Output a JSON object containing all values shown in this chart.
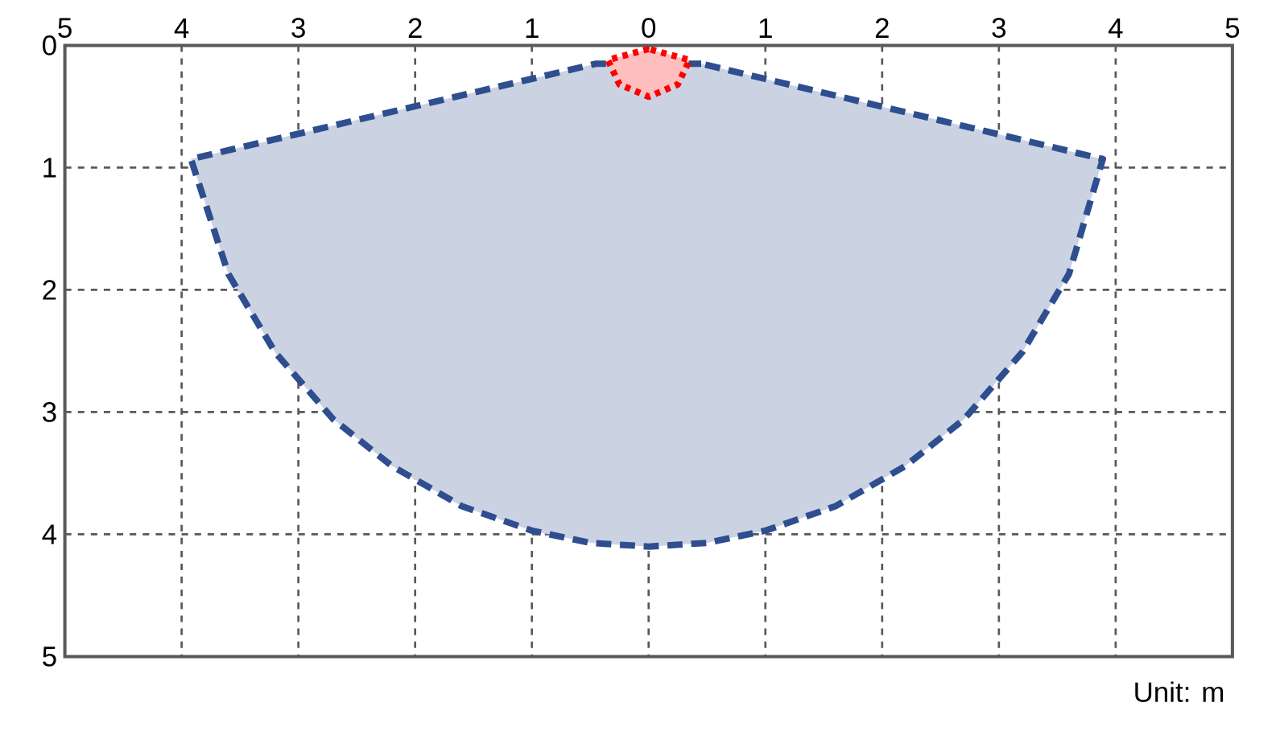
{
  "chart_data": {
    "type": "area",
    "xlim": [
      -5,
      5
    ],
    "ylim": [
      5,
      0
    ],
    "xticks": [
      {
        "value": -5,
        "label": "5"
      },
      {
        "value": -4,
        "label": "4"
      },
      {
        "value": -3,
        "label": "3"
      },
      {
        "value": -2,
        "label": "2"
      },
      {
        "value": -1,
        "label": "1"
      },
      0,
      1,
      2,
      3,
      4,
      5
    ],
    "yticks": [
      0,
      1,
      2,
      3,
      4,
      5
    ],
    "grid": true,
    "series": [
      {
        "color": "#2e4e8f",
        "line_style": "dashed",
        "x": [
          0.45,
          -0.45,
          -3.92,
          -3.6,
          -3.2,
          -2.7,
          -2.2,
          -1.6,
          -1.0,
          -0.5,
          0,
          0.5,
          1.0,
          1.6,
          2.2,
          2.7,
          3.2,
          3.6,
          3.89
        ],
        "values": [
          0.15,
          0.15,
          0.93,
          1.87,
          2.51,
          3.06,
          3.44,
          3.77,
          3.97,
          4.07,
          4.1,
          4.07,
          3.97,
          3.77,
          3.44,
          3.06,
          2.51,
          1.87,
          0.93
        ]
      },
      {
        "color": "#ff0000",
        "line_style": "dotted",
        "x": [
          0,
          -0.35,
          -0.25,
          0,
          0.25,
          0.35
        ],
        "values": [
          0.03,
          0.12,
          0.32,
          0.42,
          0.32,
          0.12
        ]
      }
    ],
    "annotations": [
      "Unit: m"
    ]
  }
}
